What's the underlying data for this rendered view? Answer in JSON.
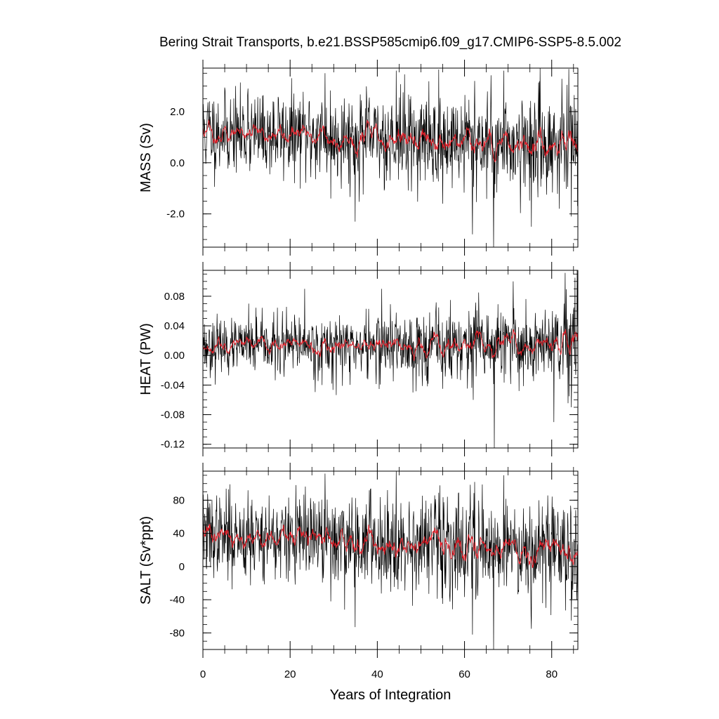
{
  "title": "Bering Strait Transports, b.e21.BSSP585cmip6.f09_g17.CMIP6-SSP5-8.5.002",
  "xlabel": "Years of Integration",
  "colors": {
    "raw": "#000000",
    "smooth": "#e8202a"
  },
  "chart_data": [
    {
      "type": "line",
      "ylabel": "MASS (Sv)",
      "xlim": [
        0,
        86
      ],
      "ylim": [
        -3.3,
        3.7
      ],
      "yticks": [
        -2.0,
        0.0,
        2.0
      ],
      "yticklabels": [
        "-2.0",
        "0.0",
        "2.0"
      ],
      "xticks": [
        0,
        20,
        40,
        60,
        80
      ],
      "xticklabels": [
        "0",
        "20",
        "40",
        "60",
        "80"
      ],
      "grid": false,
      "gen": {
        "mean": [
          1.2,
          0.7
        ],
        "sd": [
          0.75,
          1.0
        ],
        "amp": 0.25,
        "seed": 11
      },
      "spikes": [
        [
          0.3,
          1.7
        ],
        [
          1.5,
          2.4
        ],
        [
          10.3,
          2.9
        ],
        [
          28.0,
          3.5
        ],
        [
          29.3,
          -1.4
        ],
        [
          34.9,
          -2.3
        ],
        [
          44.3,
          3.6
        ],
        [
          55.0,
          -1.6
        ],
        [
          61.8,
          -2.8
        ],
        [
          62.3,
          3.2
        ],
        [
          66.7,
          -3.3
        ],
        [
          69.0,
          3.6
        ],
        [
          75.3,
          -2.5
        ],
        [
          84.5,
          -2.1
        ],
        [
          85.5,
          2.1
        ]
      ]
    },
    {
      "type": "line",
      "ylabel": "HEAT (PW)",
      "xlim": [
        0,
        86
      ],
      "ylim": [
        -0.125,
        0.115
      ],
      "yticks": [
        -0.12,
        -0.08,
        -0.04,
        0.0,
        0.04,
        0.08
      ],
      "yticklabels": [
        "-0.12",
        "-0.08",
        "-0.04",
        "0.00",
        "0.04",
        "0.08"
      ],
      "xticks": [
        0,
        20,
        40,
        60,
        80
      ],
      "xticklabels": [
        "0",
        "20",
        "40",
        "60",
        "80"
      ],
      "grid": false,
      "gen": {
        "mean": [
          0.012,
          0.014
        ],
        "sd": [
          0.016,
          0.03
        ],
        "amp": 0.008,
        "seed": 23
      },
      "spikes": [
        [
          10.5,
          0.07
        ],
        [
          23.3,
          0.09
        ],
        [
          27.3,
          -0.04
        ],
        [
          41.0,
          0.09
        ],
        [
          55.0,
          -0.045
        ],
        [
          62.0,
          -0.06
        ],
        [
          66.8,
          -0.125
        ],
        [
          71.2,
          0.1
        ],
        [
          80.5,
          -0.09
        ],
        [
          84.5,
          -0.07
        ],
        [
          85.3,
          0.105
        ],
        [
          85.8,
          0.115
        ]
      ]
    },
    {
      "type": "line",
      "ylabel": "SALT (Sv*ppt)",
      "xlim": [
        0,
        86
      ],
      "ylim": [
        -100,
        115
      ],
      "yticks": [
        -80,
        -40,
        0,
        40,
        80
      ],
      "yticklabels": [
        "-80",
        "-40",
        "0",
        "40",
        "80"
      ],
      "xticks": [
        0,
        20,
        40,
        60,
        80
      ],
      "xticklabels": [
        "0",
        "20",
        "40",
        "60",
        "80"
      ],
      "grid": false,
      "gen": {
        "mean": [
          38,
          22
        ],
        "sd": [
          24,
          32
        ],
        "amp": 7,
        "seed": 37
      },
      "spikes": [
        [
          0.3,
          52
        ],
        [
          10.3,
          92
        ],
        [
          28.0,
          112
        ],
        [
          29.3,
          -42
        ],
        [
          34.9,
          -73
        ],
        [
          44.3,
          115
        ],
        [
          55.0,
          -45
        ],
        [
          61.8,
          -82
        ],
        [
          62.3,
          102
        ],
        [
          66.7,
          -100
        ],
        [
          69.0,
          110
        ],
        [
          75.3,
          -75
        ],
        [
          84.5,
          -65
        ],
        [
          85.5,
          68
        ]
      ]
    }
  ]
}
